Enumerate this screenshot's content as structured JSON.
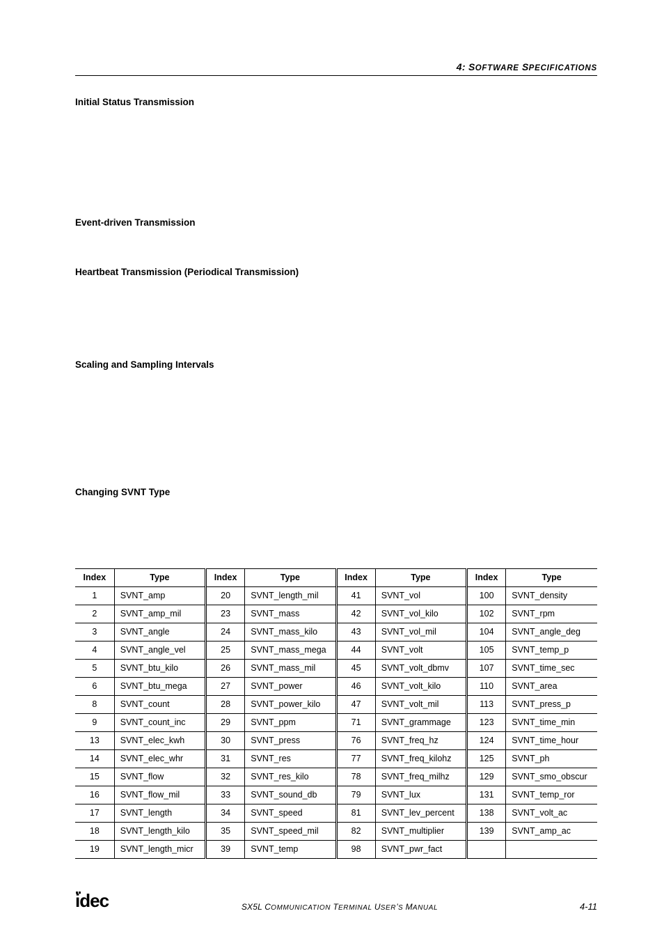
{
  "header": {
    "chapter_num": "4:",
    "title_words": [
      {
        "lead": "S",
        "rest": "OFTWARE"
      },
      {
        "lead": "S",
        "rest": "PECIFICATIONS"
      }
    ]
  },
  "sections": {
    "s1": "Initial Status Transmission",
    "s2": "Event-driven Transmission",
    "s3": "Heartbeat Transmission (Periodical Transmission)",
    "s4": "Scaling and Sampling Intervals",
    "s5": "Changing SVNT Type"
  },
  "table": {
    "headers": {
      "index": "Index",
      "type": "Type"
    },
    "rows": [
      {
        "c1i": "1",
        "c1t": "SVNT_amp",
        "c2i": "20",
        "c2t": "SVNT_length_mil",
        "c3i": "41",
        "c3t": "SVNT_vol",
        "c4i": "100",
        "c4t": "SVNT_density"
      },
      {
        "c1i": "2",
        "c1t": "SVNT_amp_mil",
        "c2i": "23",
        "c2t": "SVNT_mass",
        "c3i": "42",
        "c3t": "SVNT_vol_kilo",
        "c4i": "102",
        "c4t": "SVNT_rpm"
      },
      {
        "c1i": "3",
        "c1t": "SVNT_angle",
        "c2i": "24",
        "c2t": "SVNT_mass_kilo",
        "c3i": "43",
        "c3t": "SVNT_vol_mil",
        "c4i": "104",
        "c4t": "SVNT_angle_deg"
      },
      {
        "c1i": "4",
        "c1t": "SVNT_angle_vel",
        "c2i": "25",
        "c2t": "SVNT_mass_mega",
        "c3i": "44",
        "c3t": "SVNT_volt",
        "c4i": "105",
        "c4t": "SVNT_temp_p"
      },
      {
        "c1i": "5",
        "c1t": "SVNT_btu_kilo",
        "c2i": "26",
        "c2t": "SVNT_mass_mil",
        "c3i": "45",
        "c3t": "SVNT_volt_dbmv",
        "c4i": "107",
        "c4t": "SVNT_time_sec"
      },
      {
        "c1i": "6",
        "c1t": "SVNT_btu_mega",
        "c2i": "27",
        "c2t": "SVNT_power",
        "c3i": "46",
        "c3t": "SVNT_volt_kilo",
        "c4i": "110",
        "c4t": "SVNT_area"
      },
      {
        "c1i": "8",
        "c1t": "SVNT_count",
        "c2i": "28",
        "c2t": "SVNT_power_kilo",
        "c3i": "47",
        "c3t": "SVNT_volt_mil",
        "c4i": "113",
        "c4t": "SVNT_press_p"
      },
      {
        "c1i": "9",
        "c1t": "SVNT_count_inc",
        "c2i": "29",
        "c2t": "SVNT_ppm",
        "c3i": "71",
        "c3t": "SVNT_grammage",
        "c4i": "123",
        "c4t": "SVNT_time_min"
      },
      {
        "c1i": "13",
        "c1t": "SVNT_elec_kwh",
        "c2i": "30",
        "c2t": "SVNT_press",
        "c3i": "76",
        "c3t": "SVNT_freq_hz",
        "c4i": "124",
        "c4t": "SVNT_time_hour"
      },
      {
        "c1i": "14",
        "c1t": "SVNT_elec_whr",
        "c2i": "31",
        "c2t": "SVNT_res",
        "c3i": "77",
        "c3t": "SVNT_freq_kilohz",
        "c4i": "125",
        "c4t": "SVNT_ph"
      },
      {
        "c1i": "15",
        "c1t": "SVNT_flow",
        "c2i": "32",
        "c2t": "SVNT_res_kilo",
        "c3i": "78",
        "c3t": "SVNT_freq_milhz",
        "c4i": "129",
        "c4t": "SVNT_smo_obscur"
      },
      {
        "c1i": "16",
        "c1t": "SVNT_flow_mil",
        "c2i": "33",
        "c2t": "SVNT_sound_db",
        "c3i": "79",
        "c3t": "SVNT_lux",
        "c4i": "131",
        "c4t": "SVNT_temp_ror"
      },
      {
        "c1i": "17",
        "c1t": "SVNT_length",
        "c2i": "34",
        "c2t": "SVNT_speed",
        "c3i": "81",
        "c3t": "SVNT_lev_percent",
        "c4i": "138",
        "c4t": "SVNT_volt_ac"
      },
      {
        "c1i": "18",
        "c1t": "SVNT_length_kilo",
        "c2i": "35",
        "c2t": "SVNT_speed_mil",
        "c3i": "82",
        "c3t": "SVNT_multiplier",
        "c4i": "139",
        "c4t": "SVNT_amp_ac"
      },
      {
        "c1i": "19",
        "c1t": "SVNT_length_micr",
        "c2i": "39",
        "c2t": "SVNT_temp",
        "c3i": "98",
        "c3t": "SVNT_pwr_fact",
        "c4i": "",
        "c4t": ""
      }
    ]
  },
  "footer": {
    "logo_text": "idec",
    "manual_words": [
      {
        "lead": "SX5L ",
        "rest": ""
      },
      {
        "lead": "C",
        "rest": "OMMUNICATION "
      },
      {
        "lead": "T",
        "rest": "ERMINAL "
      },
      {
        "lead": "U",
        "rest": "SER"
      },
      {
        "lead": "’",
        "rest": "S "
      },
      {
        "lead": "M",
        "rest": "ANUAL"
      }
    ],
    "page": "4-11"
  }
}
